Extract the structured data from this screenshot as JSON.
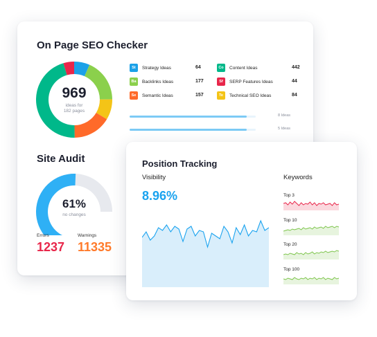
{
  "seo": {
    "title": "On Page SEO Checker",
    "donut_count": "969",
    "donut_line1": "ideas for",
    "donut_line2": "182 pages",
    "ideas": [
      {
        "abbr": "St",
        "label": "Strategy Ideas",
        "count": "64",
        "color": "#1ba1e8"
      },
      {
        "abbr": "Ba",
        "label": "Backlinks Ideas",
        "count": "177",
        "color": "#8bd04c"
      },
      {
        "abbr": "Se",
        "label": "Semantic Ideas",
        "count": "157",
        "color": "#ff6a2a"
      },
      {
        "abbr": "Co",
        "label": "Content Ideas",
        "count": "442",
        "color": "#00b88a"
      },
      {
        "abbr": "Sf",
        "label": "SERP Features Ideas",
        "count": "44",
        "color": "#e8264a"
      },
      {
        "abbr": "Te",
        "label": "Technical SEO Ideas",
        "count": "84",
        "color": "#f4c417"
      }
    ],
    "progress": [
      {
        "text": "8 Ideas",
        "fraction": 0.93
      },
      {
        "text": "5 Ideas",
        "fraction": 0.93
      }
    ]
  },
  "audit": {
    "title": "Site Audit",
    "percent": "61%",
    "percent_value": 0.61,
    "sub": "no changes",
    "errors_label": "Errors",
    "errors_value": "1237",
    "warnings_label": "Warnings",
    "warnings_value": "11335"
  },
  "position": {
    "title": "Position Tracking",
    "visibility_label": "Visibility",
    "visibility_value": "8.96%",
    "keywords_label": "Keywords",
    "keywords": [
      {
        "label": "Top 3",
        "color": "#e8264a"
      },
      {
        "label": "Top 10",
        "color": "#7cc44a"
      },
      {
        "label": "Top 20",
        "color": "#7cc44a"
      },
      {
        "label": "Top 100",
        "color": "#7cc44a"
      }
    ]
  },
  "colors": {
    "accent_blue": "#1aa3ef",
    "error_red": "#e8264a",
    "warning_orange": "#ff7a2a",
    "audit_gauge": "#2fb0f5"
  }
}
